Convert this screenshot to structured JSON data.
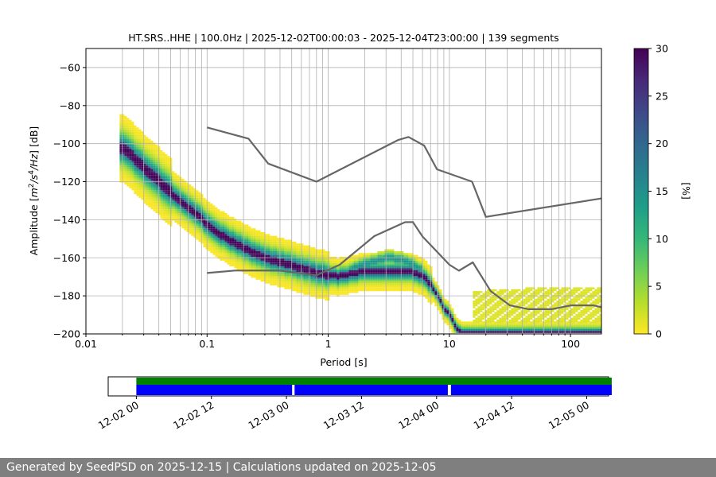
{
  "chart_data": [
    {
      "type": "heatmap",
      "title": "HT.SRS..HHE | 100.0Hz | 2025-12-02T00:00:03 - 2025-12-04T23:00:00 | 139 segments",
      "xlabel": "Period [s]",
      "ylabel": "Amplitude [m²/s⁴/Hz] [dB]",
      "xscale": "log",
      "xlim": [
        0.01,
        180
      ],
      "ylim": [
        -200,
        -50
      ],
      "xticks": [
        0.01,
        0.1,
        1,
        10,
        100
      ],
      "xtick_labels": [
        "0.01",
        "0.1",
        "1",
        "10",
        "100"
      ],
      "yticks": [
        -200,
        -180,
        -160,
        -140,
        -120,
        -100,
        -80,
        -60
      ],
      "ytick_labels": [
        "−200",
        "−180",
        "−160",
        "−140",
        "−120",
        "−100",
        "−80",
        "−60"
      ],
      "grid": true,
      "colormap": "viridis_r",
      "colorbar": {
        "label": "[%]",
        "range": [
          0,
          30
        ],
        "ticks": [
          0,
          5,
          10,
          15,
          20,
          25,
          30
        ],
        "tick_labels": [
          "0",
          "5",
          "10",
          "15",
          "20",
          "25",
          "30"
        ],
        "colors": [
          "#fde725",
          "#b5de2b",
          "#6ece58",
          "#35b779",
          "#1f9e89",
          "#26828e",
          "#31688e",
          "#3e4989",
          "#482878",
          "#440154"
        ]
      },
      "density_ridge": {
        "period": [
          0.02,
          0.03,
          0.05,
          0.08,
          0.12,
          0.2,
          0.3,
          0.5,
          0.8,
          1.2,
          2,
          3,
          4,
          5,
          6,
          7,
          8,
          9,
          10,
          11,
          12,
          13,
          15,
          20,
          40,
          80,
          180
        ],
        "amplitude": [
          -102,
          -113,
          -126,
          -137,
          -147,
          -155,
          -160,
          -164,
          -168,
          -170,
          -167,
          -167,
          -167,
          -168,
          -170,
          -175,
          -181,
          -187,
          -191,
          -196,
          -199,
          -200,
          -200,
          -200,
          -200,
          -200,
          -200
        ]
      },
      "secondary_ridge": {
        "period": [
          1.5,
          2,
          3,
          4,
          5,
          6
        ],
        "amplitude": [
          -166,
          -163,
          -160,
          -161,
          -164,
          -167
        ]
      },
      "noise_floor_band": {
        "period": [
          15,
          20,
          40,
          80,
          180
        ],
        "amplitude_top": [
          -178,
          -177,
          -176,
          -176,
          -176
        ],
        "amplitude_bottom": [
          -198,
          -198,
          -199,
          -199,
          -199
        ]
      },
      "series": [
        {
          "x": [
            0.1,
            0.22,
            0.32,
            0.8,
            3.8,
            4.6,
            6.2,
            7.9,
            15.4,
            20,
            180
          ],
          "y": [
            -91.5,
            -97.4,
            -110.5,
            -120,
            -98,
            -96.5,
            -101,
            -113.5,
            -120,
            -138.5,
            -128.8
          ]
        },
        {
          "x": [
            0.1,
            0.17,
            0.4,
            0.8,
            1.24,
            2.4,
            4.3,
            5.0,
            6.0,
            10,
            12,
            15.6,
            21.9,
            31.6,
            45,
            70,
            101,
            154,
            180
          ],
          "y": [
            -168,
            -166.7,
            -166.7,
            -169.2,
            -163.7,
            -148.6,
            -141.3,
            -141.2,
            -148.8,
            -163.6,
            -166.8,
            -162.4,
            -177.5,
            -185,
            -187,
            -187,
            -185,
            -185,
            -186
          ]
        }
      ]
    },
    {
      "type": "bar",
      "role": "data-availability",
      "xtick_labels": [
        "12-02 00",
        "12-02 12",
        "12-03 00",
        "12-03 12",
        "12-04 00",
        "12-04 12",
        "12-05 00"
      ],
      "xlim_hours": [
        -4.5,
        75.5
      ],
      "coverage_color": "#008000",
      "segment_color": "#0000ff",
      "coverage_hours": [
        0,
        76
      ],
      "segments_hours": [
        [
          0,
          24.9
        ],
        [
          25.3,
          49.8
        ],
        [
          50.3,
          76
        ]
      ]
    }
  ],
  "footer": {
    "text": "Generated by SeedPSD on 2025-12-15 | Calculations updated on 2025-12-05"
  }
}
